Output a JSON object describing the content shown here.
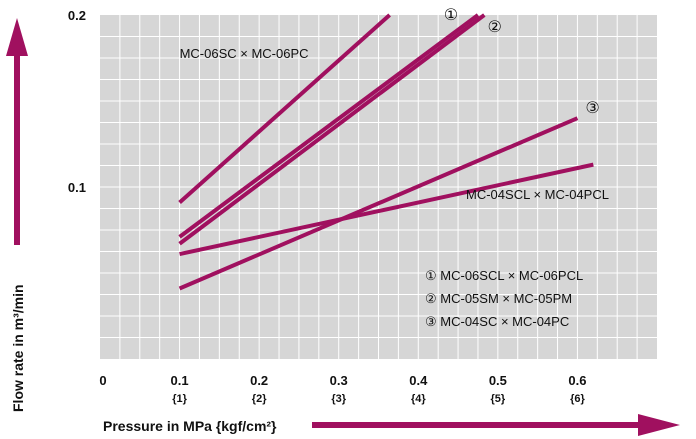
{
  "chart_data": {
    "type": "line",
    "xlabel": "Pressure in MPa {kgf/cm²}",
    "ylabel": "Flow rate in m³/min",
    "xlim": [
      0,
      0.7
    ],
    "ylim": [
      0,
      0.2
    ],
    "x_ticks": [
      {
        "value": 0,
        "label": "0",
        "sub": ""
      },
      {
        "value": 0.1,
        "label": "0.1",
        "sub": "{1}"
      },
      {
        "value": 0.2,
        "label": "0.2",
        "sub": "{2}"
      },
      {
        "value": 0.3,
        "label": "0.3",
        "sub": "{3}"
      },
      {
        "value": 0.4,
        "label": "0.4",
        "sub": "{4}"
      },
      {
        "value": 0.5,
        "label": "0.5",
        "sub": "{5}"
      },
      {
        "value": 0.6,
        "label": "0.6",
        "sub": "{6}"
      }
    ],
    "y_ticks": [
      {
        "value": 0.1,
        "label": "0.1"
      },
      {
        "value": 0.2,
        "label": "0.2"
      }
    ],
    "grid": true,
    "line_color": "#a0105f",
    "arrow_color": "#a0105f",
    "plot_bg": "#d6d6d6",
    "series": [
      {
        "name": "MC-06SC × MC-06PC",
        "x": [
          0.1,
          0.364
        ],
        "y": [
          0.091,
          0.2
        ]
      },
      {
        "name": "MC-06SCL × MC-06PCL",
        "x": [
          0.1,
          0.475
        ],
        "y": [
          0.071,
          0.2
        ]
      },
      {
        "name": "MC-05SM × MC-05PM",
        "x": [
          0.1,
          0.483
        ],
        "y": [
          0.067,
          0.2
        ]
      },
      {
        "name": "MC-04SC × MC-04PC",
        "x": [
          0.1,
          0.6
        ],
        "y": [
          0.041,
          0.14
        ]
      },
      {
        "name": "MC-04SCL × MC-04PCL",
        "x": [
          0.1,
          0.62
        ],
        "y": [
          0.061,
          0.113
        ]
      }
    ],
    "series_labels": [
      {
        "text": "MC-06SC × MC-06PC",
        "x": 0.1,
        "y": 0.175
      },
      {
        "text": "MC-04SCL × MC-04PCL",
        "x": 0.46,
        "y": 0.093
      }
    ],
    "markers": [
      {
        "text": "①",
        "x": 0.432,
        "y": 0.197
      },
      {
        "text": "②",
        "x": 0.487,
        "y": 0.19
      },
      {
        "text": "③",
        "x": 0.61,
        "y": 0.143
      }
    ],
    "legend": [
      {
        "text": "① MC-06SCL × MC-06PCL"
      },
      {
        "text": "② MC-05SM × MC-05PM"
      },
      {
        "text": "③ MC-04SC × MC-04PC"
      }
    ]
  }
}
